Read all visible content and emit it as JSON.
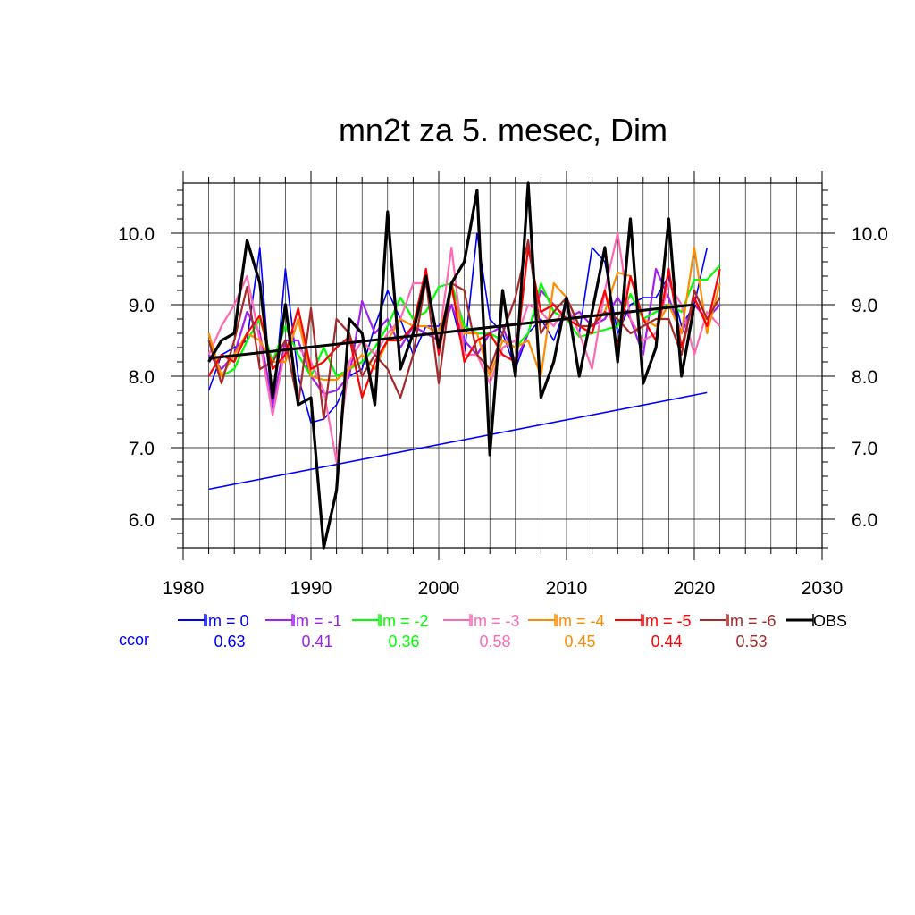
{
  "chart_data": {
    "type": "line",
    "title": "mn2t za 5. mesec, Dim",
    "xlabel": "",
    "ylabel": "",
    "xlim": [
      1980,
      2030
    ],
    "ylim": [
      5.6,
      10.7
    ],
    "xticks": [
      1980,
      1990,
      2000,
      2010,
      2020,
      2030
    ],
    "xtick_labels": [
      "1980",
      "1990",
      "2000",
      "2010",
      "2020",
      "2030"
    ],
    "yticks": [
      6.0,
      7.0,
      8.0,
      9.0,
      10.0
    ],
    "ytick_labels": [
      "6.0",
      "7.0",
      "8.0",
      "9.0",
      "10.0"
    ],
    "grid": true,
    "ccor_label": "ccor",
    "series": [
      {
        "name": "lm = 0",
        "color": "#0000ff",
        "ccor": "0.63",
        "x": [
          1982,
          1983,
          1984,
          1985,
          1986,
          1987,
          1988,
          1989,
          1990,
          1991,
          1992,
          1993,
          1994,
          1995,
          1996,
          1997,
          1998,
          1999,
          2000,
          2001,
          2002,
          2003,
          2004,
          2005,
          2006,
          2007,
          2008,
          2009,
          2010,
          2011,
          2012,
          2013,
          2014,
          2015,
          2016,
          2017,
          2018,
          2019,
          2020,
          2021
        ],
        "values": [
          7.8,
          8.3,
          8.4,
          8.5,
          9.8,
          7.5,
          9.5,
          8.0,
          7.35,
          7.4,
          7.6,
          8.0,
          8.1,
          8.7,
          9.2,
          8.8,
          8.3,
          8.7,
          8.7,
          9.0,
          8.3,
          10.0,
          8.8,
          8.6,
          8.1,
          8.6,
          8.8,
          8.5,
          9.0,
          8.6,
          9.8,
          9.6,
          8.6,
          9.0,
          9.1,
          9.1,
          9.4,
          8.7,
          9.0,
          9.8
        ],
        "trend": {
          "x": [
            1982,
            2021
          ],
          "y": [
            6.42,
            7.77
          ]
        }
      },
      {
        "name": "lm = -1",
        "color": "#a020f0",
        "ccor": "0.41",
        "x": [
          1982,
          1983,
          1984,
          1985,
          1986,
          1987,
          1988,
          1989,
          1990,
          1991,
          1992,
          1993,
          1994,
          1995,
          1996,
          1997,
          1998,
          1999,
          2000,
          2001,
          2002,
          2003,
          2004,
          2005,
          2006,
          2007,
          2008,
          2009,
          2010,
          2011,
          2012,
          2013,
          2014,
          2015,
          2016,
          2017,
          2018,
          2019,
          2020,
          2021,
          2022
        ],
        "values": [
          8.3,
          8.1,
          8.3,
          8.9,
          8.6,
          7.6,
          8.5,
          8.5,
          8.0,
          7.75,
          7.8,
          8.0,
          9.05,
          8.6,
          8.8,
          8.4,
          8.7,
          8.6,
          8.5,
          9.0,
          8.5,
          8.3,
          8.6,
          8.7,
          8.2,
          8.6,
          9.2,
          9.0,
          8.8,
          8.9,
          8.7,
          8.8,
          9.1,
          8.8,
          8.3,
          9.5,
          9.1,
          8.6,
          9.0,
          8.8,
          9.0
        ]
      },
      {
        "name": "lm = -2",
        "color": "#00ff00",
        "ccor": "0.36",
        "x": [
          1982,
          1983,
          1984,
          1985,
          1986,
          1987,
          1988,
          1989,
          1990,
          1991,
          1992,
          1993,
          1994,
          1995,
          1996,
          1997,
          1998,
          1999,
          2000,
          2001,
          2002,
          2003,
          2004,
          2005,
          2006,
          2007,
          2008,
          2009,
          2010,
          2011,
          2012,
          2013,
          2014,
          2015,
          2016,
          2017,
          2018,
          2019,
          2020,
          2021,
          2022
        ],
        "values": [
          8.5,
          8.0,
          8.1,
          8.5,
          8.8,
          8.2,
          8.7,
          8.3,
          8.0,
          8.4,
          8.0,
          8.1,
          8.2,
          8.4,
          8.7,
          9.1,
          8.8,
          8.9,
          9.25,
          9.3,
          8.7,
          8.6,
          8.6,
          8.5,
          8.4,
          8.6,
          9.3,
          8.9,
          8.8,
          8.55,
          8.6,
          8.65,
          8.7,
          9.15,
          8.8,
          8.9,
          9.0,
          8.9,
          9.35,
          9.35,
          9.55
        ]
      },
      {
        "name": "lm = -3",
        "color": "#ff69b4",
        "ccor": "0.58",
        "x": [
          1982,
          1983,
          1984,
          1985,
          1986,
          1987,
          1988,
          1989,
          1990,
          1991,
          1992,
          1993,
          1994,
          1995,
          1996,
          1997,
          1998,
          1999,
          2000,
          2001,
          2002,
          2003,
          2004,
          2005,
          2006,
          2007,
          2008,
          2009,
          2010,
          2011,
          2012,
          2013,
          2014,
          2015,
          2016,
          2017,
          2018,
          2019,
          2020,
          2021,
          2022
        ],
        "values": [
          8.3,
          8.7,
          9.0,
          9.4,
          8.5,
          7.45,
          8.4,
          8.4,
          8.2,
          7.8,
          6.8,
          8.2,
          8.5,
          8.3,
          8.6,
          8.8,
          9.3,
          9.3,
          8.5,
          9.8,
          8.3,
          8.3,
          7.9,
          8.4,
          8.5,
          9.0,
          8.9,
          8.7,
          9.0,
          8.6,
          8.1,
          9.2,
          10.0,
          8.8,
          8.5,
          8.6,
          9.3,
          9.0,
          8.3,
          8.9,
          8.7
        ]
      },
      {
        "name": "lm = -4",
        "color": "#ff8c00",
        "ccor": "0.45",
        "x": [
          1982,
          1983,
          1984,
          1985,
          1986,
          1987,
          1988,
          1989,
          1990,
          1991,
          1992,
          1993,
          1994,
          1995,
          1996,
          1997,
          1998,
          1999,
          2000,
          2001,
          2002,
          2003,
          2004,
          2005,
          2006,
          2007,
          2008,
          2009,
          2010,
          2011,
          2012,
          2013,
          2014,
          2015,
          2016,
          2017,
          2018,
          2019,
          2020,
          2021,
          2022
        ],
        "values": [
          8.6,
          8.0,
          8.3,
          8.6,
          8.5,
          8.2,
          8.2,
          8.8,
          8.0,
          7.95,
          7.95,
          8.1,
          8.3,
          8.1,
          8.5,
          8.8,
          8.7,
          8.7,
          8.6,
          9.2,
          8.6,
          8.6,
          8.0,
          8.5,
          8.4,
          8.5,
          8.0,
          9.3,
          9.1,
          8.7,
          8.7,
          8.9,
          9.45,
          9.4,
          8.8,
          8.7,
          9.0,
          8.6,
          9.8,
          8.6,
          9.3
        ]
      },
      {
        "name": "lm = -5",
        "color": "#ff0000",
        "ccor": "0.44",
        "x": [
          1982,
          1983,
          1984,
          1985,
          1986,
          1987,
          1988,
          1989,
          1990,
          1991,
          1992,
          1993,
          1994,
          1995,
          1996,
          1997,
          1998,
          1999,
          2000,
          2001,
          2002,
          2003,
          2004,
          2005,
          2006,
          2007,
          2008,
          2009,
          2010,
          2011,
          2012,
          2013,
          2014,
          2015,
          2016,
          2017,
          2018,
          2019,
          2020,
          2021,
          2022
        ],
        "values": [
          8.0,
          8.3,
          8.2,
          8.6,
          8.85,
          8.1,
          8.3,
          8.95,
          8.1,
          8.2,
          8.4,
          8.55,
          7.7,
          8.2,
          8.5,
          8.5,
          8.7,
          9.5,
          8.3,
          9.3,
          8.2,
          8.5,
          8.6,
          8.3,
          8.2,
          9.8,
          8.9,
          9.0,
          8.8,
          8.7,
          8.6,
          9.2,
          8.4,
          9.4,
          8.8,
          8.5,
          9.5,
          8.4,
          9.1,
          8.7,
          9.5
        ]
      },
      {
        "name": "lm = -6",
        "color": "#a52a2a",
        "ccor": "0.53",
        "x": [
          1982,
          1983,
          1984,
          1985,
          1986,
          1987,
          1988,
          1989,
          1990,
          1991,
          1992,
          1993,
          1994,
          1995,
          1996,
          1997,
          1998,
          1999,
          2000,
          2001,
          2002,
          2003,
          2004,
          2005,
          2006,
          2007,
          2008,
          2009,
          2010,
          2011,
          2012,
          2013,
          2014,
          2015,
          2016,
          2017,
          2018,
          2019,
          2020,
          2021,
          2022
        ],
        "values": [
          8.5,
          7.9,
          8.5,
          9.25,
          8.1,
          8.2,
          8.5,
          7.6,
          8.95,
          7.4,
          8.8,
          8.6,
          8.0,
          8.3,
          8.1,
          7.7,
          8.3,
          9.35,
          7.9,
          9.3,
          9.2,
          8.3,
          8.1,
          8.6,
          9.1,
          9.9,
          8.6,
          8.9,
          9.1,
          8.7,
          8.7,
          8.9,
          8.8,
          8.6,
          8.7,
          8.8,
          8.8,
          8.3,
          9.2,
          8.8,
          9.1
        ]
      },
      {
        "name": "OBS",
        "color": "#000000",
        "ccor": "",
        "x": [
          1982,
          1983,
          1984,
          1985,
          1986,
          1987,
          1988,
          1989,
          1990,
          1991,
          1992,
          1993,
          1994,
          1995,
          1996,
          1997,
          1998,
          1999,
          2000,
          2001,
          2002,
          2003,
          2004,
          2005,
          2006,
          2007,
          2008,
          2009,
          2010,
          2011,
          2012,
          2013,
          2014,
          2015,
          2016,
          2017,
          2018,
          2019,
          2020
        ],
        "values": [
          8.2,
          8.5,
          8.6,
          9.9,
          9.3,
          7.7,
          9.0,
          7.6,
          7.7,
          5.6,
          6.4,
          8.8,
          8.6,
          7.6,
          10.3,
          8.1,
          8.6,
          9.4,
          8.4,
          9.3,
          9.6,
          10.6,
          6.9,
          9.2,
          8.0,
          10.7,
          7.7,
          8.2,
          9.1,
          8.0,
          8.9,
          9.8,
          8.2,
          10.2,
          7.9,
          8.4,
          10.2,
          8.0,
          9.0
        ],
        "trend": {
          "x": [
            1982,
            2020
          ],
          "y": [
            8.25,
            9.0
          ]
        }
      }
    ]
  }
}
